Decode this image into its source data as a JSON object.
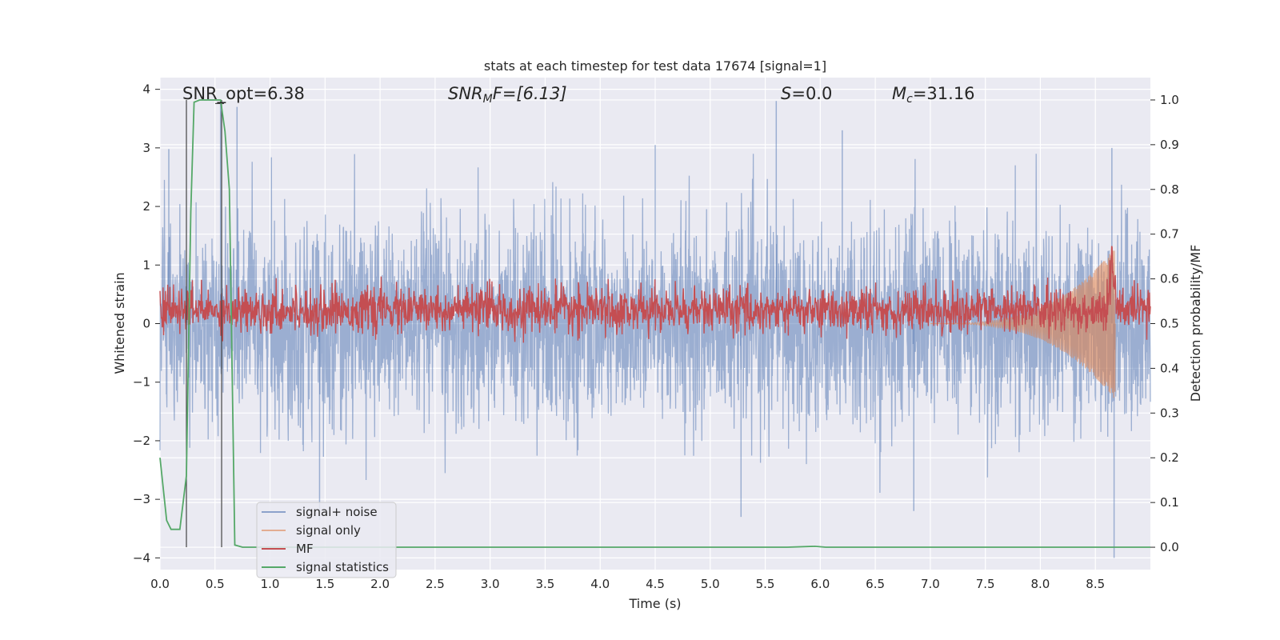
{
  "chart_data": {
    "type": "line",
    "title": "stats at each timestep for test data 17674 [signal=1]",
    "xlabel": "Time (s)",
    "ylabel": "Whitened strain",
    "y2label": "Detection probability/MF",
    "xlim": [
      0.0,
      9.0
    ],
    "ylim": [
      -4.2,
      4.2
    ],
    "y2lim": [
      -0.05,
      1.05
    ],
    "xticks": [
      0.0,
      0.5,
      1.0,
      1.5,
      2.0,
      2.5,
      3.0,
      3.5,
      4.0,
      4.5,
      5.0,
      5.5,
      6.0,
      6.5,
      7.0,
      7.5,
      8.0,
      8.5
    ],
    "xtick_labels": [
      "0.0",
      "0.5",
      "1.0",
      "1.5",
      "2.0",
      "2.5",
      "3.0",
      "3.5",
      "4.0",
      "4.5",
      "5.0",
      "5.5",
      "6.0",
      "6.5",
      "7.0",
      "7.5",
      "8.0",
      "8.5"
    ],
    "yticks": [
      -4,
      -3,
      -2,
      -1,
      0,
      1,
      2,
      3,
      4
    ],
    "ytick_labels": [
      "−4",
      "−3",
      "−2",
      "−1",
      "0",
      "1",
      "2",
      "3",
      "4"
    ],
    "y2ticks": [
      0.0,
      0.1,
      0.2,
      0.3,
      0.4,
      0.5,
      0.6,
      0.7,
      0.8,
      0.9,
      1.0
    ],
    "y2tick_labels": [
      "0.0",
      "0.1",
      "0.2",
      "0.3",
      "0.4",
      "0.5",
      "0.6",
      "0.7",
      "0.8",
      "0.9",
      "1.0"
    ],
    "grid": true,
    "legend_position": "bottom-left",
    "annotations": {
      "snr_opt": "SNR_opt=6.38",
      "snr_mf_main": "SNR",
      "snr_mf_sub": "M",
      "snr_mf_rest": "F=[6.13]",
      "s_italic": "S",
      "s_rest": "=0.0",
      "mc_italic": "M",
      "mc_sub": "c",
      "mc_rest": "=31.16"
    },
    "vlines_x": [
      0.24,
      0.56
    ],
    "series": [
      {
        "name": "signal+ noise",
        "axis": "left",
        "color": "#4c72b0",
        "opacity": 0.5,
        "description_amplitude": 1.0,
        "x_range": [
          0.0,
          9.0
        ],
        "peaks": [
          [
            0.08,
            2.98
          ],
          [
            0.55,
            3.8
          ],
          [
            0.7,
            3.7
          ],
          [
            4.5,
            3.05
          ],
          [
            5.6,
            3.8
          ],
          [
            6.2,
            3.3
          ],
          [
            8.65,
            3.0
          ],
          [
            8.67,
            -4.0
          ],
          [
            5.28,
            -3.3
          ],
          [
            1.45,
            -3.35
          ],
          [
            6.85,
            -3.2
          ]
        ]
      },
      {
        "name": "signal only",
        "axis": "left",
        "color": "#dd8452",
        "opacity": 0.6,
        "chirp_start": 7.0,
        "chirp_end": 8.68,
        "chirp_peak_amplitude": 1.3
      },
      {
        "name": "MF",
        "axis": "right",
        "color": "#c44e52",
        "baseline": 0.53,
        "noise": 0.025,
        "peak_x": 8.65,
        "peak_value": 0.65
      },
      {
        "name": "signal statistics",
        "axis": "right",
        "color": "#55a868",
        "x": [
          0.0,
          0.06,
          0.1,
          0.18,
          0.24,
          0.28,
          0.31,
          0.36,
          0.45,
          0.55,
          0.59,
          0.63,
          0.68,
          0.75,
          1.0,
          5.7,
          5.95,
          6.05,
          9.0
        ],
        "values": [
          0.2,
          0.06,
          0.04,
          0.04,
          0.16,
          0.75,
          0.995,
          1.0,
          1.0,
          1.0,
          0.93,
          0.8,
          0.005,
          0.0,
          0.0,
          0.0,
          0.002,
          0.0,
          0.0
        ]
      }
    ]
  }
}
